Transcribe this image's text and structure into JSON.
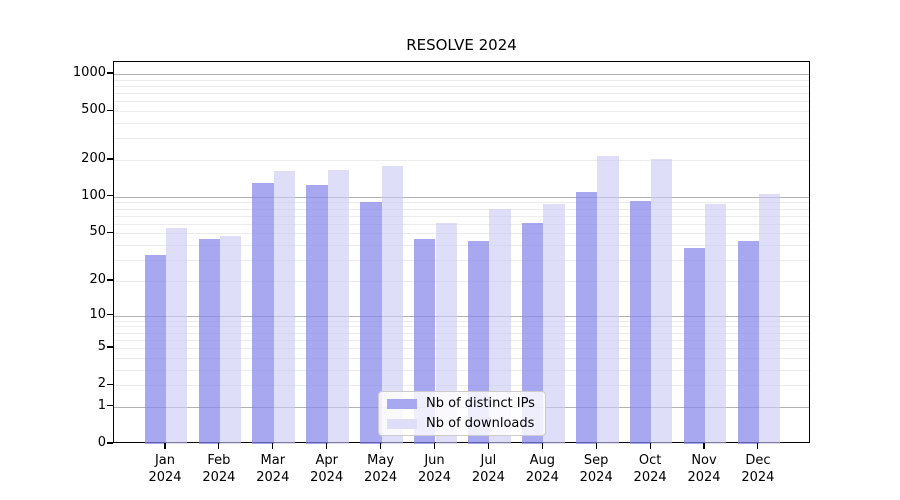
{
  "chart_data": {
    "type": "bar",
    "title": "RESOLVE 2024",
    "yscale": "symlog",
    "grid": true,
    "x_tick_year": "2024",
    "categories": [
      "Jan",
      "Feb",
      "Mar",
      "Apr",
      "May",
      "Jun",
      "Jul",
      "Aug",
      "Sep",
      "Oct",
      "Nov",
      "Dec"
    ],
    "series": [
      {
        "name": "Nb of distinct IPs",
        "fill": "rgba(134,134,235,0.72)",
        "legend_color": "#a8a8f1",
        "values": [
          33,
          45,
          130,
          126,
          90,
          45,
          43,
          61,
          110,
          92,
          38,
          43
        ]
      },
      {
        "name": "Nb of downloads",
        "fill": "rgba(201,201,244,0.62)",
        "legend_color": "#dedef8",
        "values": [
          56,
          48,
          163,
          167,
          180,
          61,
          80,
          87,
          216,
          204,
          87,
          106
        ]
      }
    ],
    "y_ticks": [
      0,
      1,
      2,
      5,
      10,
      20,
      50,
      100,
      200,
      500,
      1000
    ],
    "y_major_gridlines": [
      1,
      10,
      100,
      1000
    ],
    "ylim": [
      0,
      1200
    ],
    "legend_position": "lower center",
    "colors": {
      "major_grid": "#b2b2b2",
      "minor_grid": "#ececec",
      "axis": "#000000",
      "background": "#ffffff"
    }
  }
}
